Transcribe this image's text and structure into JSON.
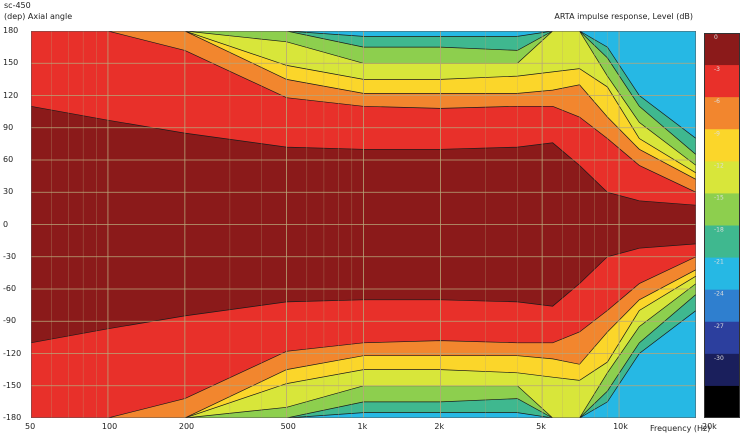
{
  "header": {
    "title": "sc-450",
    "y_unit_label": "(dep)  Axial angle",
    "right_title": "ARTA impulse response, Level  (dB)",
    "x_unit_label": "Frequency  (Hz)"
  },
  "chart_data": {
    "type": "heatmap",
    "title": "sc-450",
    "xlabel": "Frequency  (Hz)",
    "ylabel": "(dep)  Axial angle",
    "xscale": "log",
    "xlim": [
      50,
      20000
    ],
    "ylim": [
      -180,
      180
    ],
    "x_ticks": [
      {
        "value": 50,
        "label": "50"
      },
      {
        "value": 100,
        "label": "100"
      },
      {
        "value": 200,
        "label": "200"
      },
      {
        "value": 500,
        "label": "500"
      },
      {
        "value": 1000,
        "label": "1k"
      },
      {
        "value": 2000,
        "label": "2k"
      },
      {
        "value": 5000,
        "label": "5k"
      },
      {
        "value": 10000,
        "label": "10k"
      },
      {
        "value": 20000,
        "label": "20k"
      }
    ],
    "y_ticks": [
      180,
      150,
      120,
      90,
      60,
      30,
      0,
      -30,
      -60,
      -90,
      -120,
      -150,
      -180
    ],
    "colorbar": {
      "label": "ARTA impulse response, Level  (dB)",
      "levels": [
        0,
        -3,
        -6,
        -9,
        -12,
        -15,
        -18,
        -21,
        -24,
        -27,
        -30
      ],
      "colors": [
        "#8b1a1a",
        "#e8302a",
        "#f2862e",
        "#fbd62a",
        "#d8e63a",
        "#8dcf4e",
        "#3fb88f",
        "#26b8e4",
        "#2f7fcf",
        "#2c3f9e",
        "#1a1f5c",
        "#000000"
      ]
    },
    "grid": true,
    "contour_boundaries_deg": {
      "frequency_hz": [
        50,
        100,
        200,
        500,
        1000,
        2000,
        4000,
        5500,
        7000,
        9000,
        12000,
        20000
      ],
      "0": [
        110,
        97,
        85,
        72,
        70,
        70,
        72,
        76,
        55,
        30,
        22,
        18
      ],
      "-3": [
        180,
        180,
        162,
        118,
        110,
        108,
        110,
        110,
        100,
        80,
        55,
        30
      ],
      "-6": [
        180,
        180,
        180,
        135,
        122,
        122,
        122,
        125,
        130,
        100,
        70,
        42
      ],
      "-9": [
        180,
        180,
        180,
        148,
        135,
        135,
        138,
        142,
        145,
        128,
        80,
        48
      ],
      "-12": [
        180,
        180,
        180,
        170,
        150,
        150,
        150,
        180,
        180,
        138,
        95,
        55
      ],
      "-15": [
        180,
        180,
        180,
        180,
        165,
        165,
        162,
        180,
        180,
        155,
        110,
        65
      ],
      "-18": [
        180,
        180,
        180,
        180,
        175,
        175,
        175,
        180,
        180,
        165,
        120,
        80
      ]
    }
  }
}
